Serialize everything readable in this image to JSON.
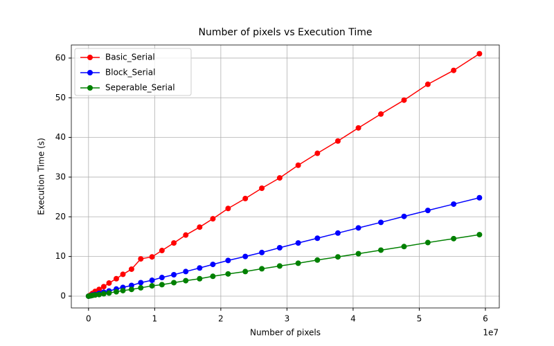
{
  "chart_data": {
    "type": "line",
    "title": "Number of pixels vs Execution Time",
    "x_label": "Number of pixels",
    "x_offset_label": "1e7",
    "y_label": "Execution Time (s)",
    "x": [
      0,
      0.03,
      0.06,
      0.1,
      0.16,
      0.23,
      0.31,
      0.42,
      0.52,
      0.65,
      0.79,
      0.96,
      1.11,
      1.29,
      1.47,
      1.68,
      1.88,
      2.11,
      2.37,
      2.62,
      2.89,
      3.17,
      3.46,
      3.77,
      4.08,
      4.42,
      4.77,
      5.13,
      5.52,
      5.91
    ],
    "series": [
      {
        "name": "Basic_Serial",
        "color": "#ff0000",
        "values": [
          0,
          0.3,
          0.7,
          1.2,
          1.7,
          2.4,
          3.3,
          4.4,
          5.5,
          6.8,
          9.4,
          9.9,
          11.5,
          13.4,
          15.4,
          17.4,
          19.5,
          22.1,
          24.6,
          27.2,
          29.8,
          33.0,
          36.0,
          39.1,
          42.4,
          45.9,
          49.4,
          53.4,
          56.9,
          61.1
        ]
      },
      {
        "name": "Block_Serial",
        "color": "#0000ff",
        "values": [
          0,
          0.1,
          0.3,
          0.4,
          0.7,
          1.0,
          1.3,
          1.8,
          2.2,
          2.7,
          3.4,
          4.0,
          4.7,
          5.4,
          6.2,
          7.1,
          8.0,
          9.0,
          10.0,
          11.0,
          12.2,
          13.4,
          14.6,
          15.9,
          17.2,
          18.6,
          20.1,
          21.6,
          23.2,
          24.8
        ]
      },
      {
        "name": "Seperable_Serial",
        "color": "#008000",
        "values": [
          0,
          0.1,
          0.2,
          0.3,
          0.4,
          0.6,
          0.8,
          1.1,
          1.4,
          1.7,
          2.1,
          2.6,
          2.9,
          3.4,
          3.9,
          4.4,
          5.0,
          5.6,
          6.2,
          6.9,
          7.6,
          8.3,
          9.1,
          9.9,
          10.7,
          11.6,
          12.5,
          13.5,
          14.5,
          15.5
        ]
      }
    ],
    "xlim": [
      -0.26,
      6.21
    ],
    "xticks": [
      0,
      1,
      2,
      3,
      4,
      5,
      6
    ],
    "ylim": [
      -2.97,
      63.3
    ],
    "yticks": [
      0,
      10,
      20,
      30,
      40,
      50,
      60
    ],
    "grid": true,
    "legend": "upper left"
  }
}
